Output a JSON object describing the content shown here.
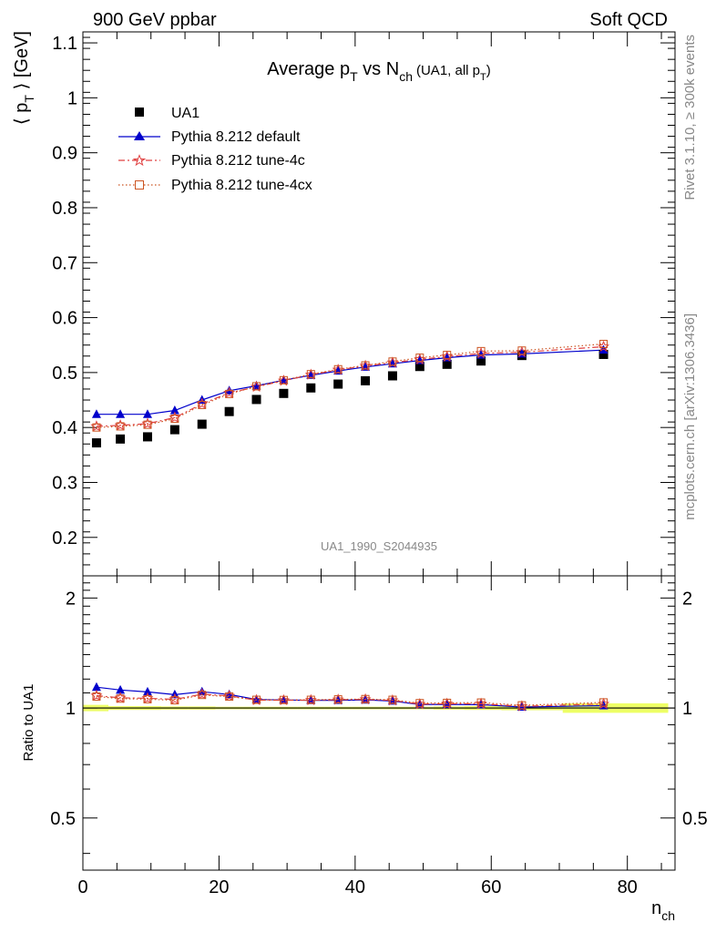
{
  "header": {
    "left": "900 GeV ppbar",
    "right": "Soft QCD"
  },
  "side_labels": {
    "rivet": "Rivet 3.1.10, ≥ 300k events",
    "mcplots": "mcplots.cern.ch [arXiv:1306.3436]"
  },
  "chart_data": [
    {
      "type": "scatter",
      "title": "Average p_T vs N_ch (UA1, all p_T)",
      "title_parts": {
        "average": "Average p",
        "sub_t": "T",
        "vs": " vs N",
        "sub_ch": "ch",
        "extra": "(UA1, all p",
        "extra_sub": "T",
        "extra_close": ")"
      },
      "ylabel": "⟨ p_T ⟩ [GeV]",
      "ylabel_parts": {
        "open": "⟨ p",
        "sub": "T",
        "close": " ⟩ [GeV]"
      },
      "xlabel": "n_ch",
      "xlabel_parts": {
        "main": "n",
        "sub": "ch"
      },
      "xlim": [
        0,
        87
      ],
      "ylim": [
        0.13,
        1.12
      ],
      "yticks": [
        0.2,
        0.3,
        0.4,
        0.5,
        0.6,
        0.7,
        0.8,
        0.9,
        1,
        1.1
      ],
      "ytick_labels": [
        "0.2",
        "0.3",
        "0.4",
        "0.5",
        "0.6",
        "0.7",
        "0.8",
        "0.9",
        "1",
        "1.1"
      ],
      "watermark": "UA1_1990_S2044935",
      "legend_position": "top-left",
      "x": [
        2,
        5.5,
        9.5,
        13.5,
        17.5,
        21.5,
        25.5,
        29.5,
        33.5,
        37.5,
        41.5,
        45.5,
        49.5,
        53.5,
        58.5,
        64.5,
        76.5
      ],
      "series": [
        {
          "name": "UA1",
          "style": "data",
          "color": "#000000",
          "values": [
            0.372,
            0.379,
            0.383,
            0.396,
            0.406,
            0.429,
            0.451,
            0.462,
            0.472,
            0.479,
            0.485,
            0.494,
            0.511,
            0.515,
            0.521,
            0.531,
            0.533
          ]
        },
        {
          "name": "Pythia 8.212 default",
          "style": "triangle-solid",
          "color": "#0000cc",
          "values": [
            0.424,
            0.424,
            0.424,
            0.431,
            0.45,
            0.467,
            0.476,
            0.486,
            0.495,
            0.503,
            0.51,
            0.516,
            0.522,
            0.527,
            0.532,
            0.534,
            0.541
          ]
        },
        {
          "name": "Pythia 8.212 tune-4c",
          "style": "star-dashdot",
          "color": "#e04040",
          "values": [
            0.402,
            0.404,
            0.407,
            0.418,
            0.443,
            0.463,
            0.474,
            0.485,
            0.496,
            0.505,
            0.512,
            0.518,
            0.524,
            0.529,
            0.535,
            0.537,
            0.547
          ]
        },
        {
          "name": "Pythia 8.212 tune-4cx",
          "style": "square-dotted",
          "color": "#cc5522",
          "values": [
            0.4,
            0.402,
            0.405,
            0.416,
            0.441,
            0.461,
            0.475,
            0.486,
            0.497,
            0.506,
            0.513,
            0.52,
            0.527,
            0.532,
            0.539,
            0.54,
            0.552
          ]
        }
      ]
    },
    {
      "type": "line",
      "title": "",
      "ylabel": "Ratio to UA1",
      "xlabel": "n_ch",
      "ylim": [
        0.36,
        2.3
      ],
      "ylog": true,
      "yticks": [
        0.5,
        1,
        2
      ],
      "ytick_labels": [
        "0.5",
        "1",
        "2"
      ],
      "xticks": [
        0,
        20,
        40,
        60,
        80
      ],
      "xtick_labels": [
        "0",
        "20",
        "40",
        "60",
        "80"
      ],
      "x": [
        2,
        5.5,
        9.5,
        13.5,
        17.5,
        21.5,
        25.5,
        29.5,
        33.5,
        37.5,
        41.5,
        45.5,
        49.5,
        53.5,
        58.5,
        64.5,
        76.5
      ],
      "band_color": "#eeff66",
      "series": [
        {
          "name": "Pythia 8.212 default",
          "color": "#0000cc",
          "values": [
            1.14,
            1.12,
            1.107,
            1.088,
            1.108,
            1.089,
            1.055,
            1.052,
            1.049,
            1.05,
            1.052,
            1.045,
            1.022,
            1.023,
            1.021,
            1.006,
            1.015
          ]
        },
        {
          "name": "Pythia 8.212 tune-4c",
          "color": "#e04040",
          "values": [
            1.081,
            1.066,
            1.063,
            1.056,
            1.091,
            1.079,
            1.051,
            1.05,
            1.051,
            1.054,
            1.056,
            1.049,
            1.025,
            1.027,
            1.027,
            1.011,
            1.026
          ]
        },
        {
          "name": "Pythia 8.212 tune-4cx",
          "color": "#cc5522",
          "values": [
            1.075,
            1.061,
            1.057,
            1.05,
            1.086,
            1.075,
            1.053,
            1.052,
            1.053,
            1.056,
            1.058,
            1.053,
            1.031,
            1.033,
            1.035,
            1.017,
            1.036
          ]
        }
      ]
    }
  ]
}
